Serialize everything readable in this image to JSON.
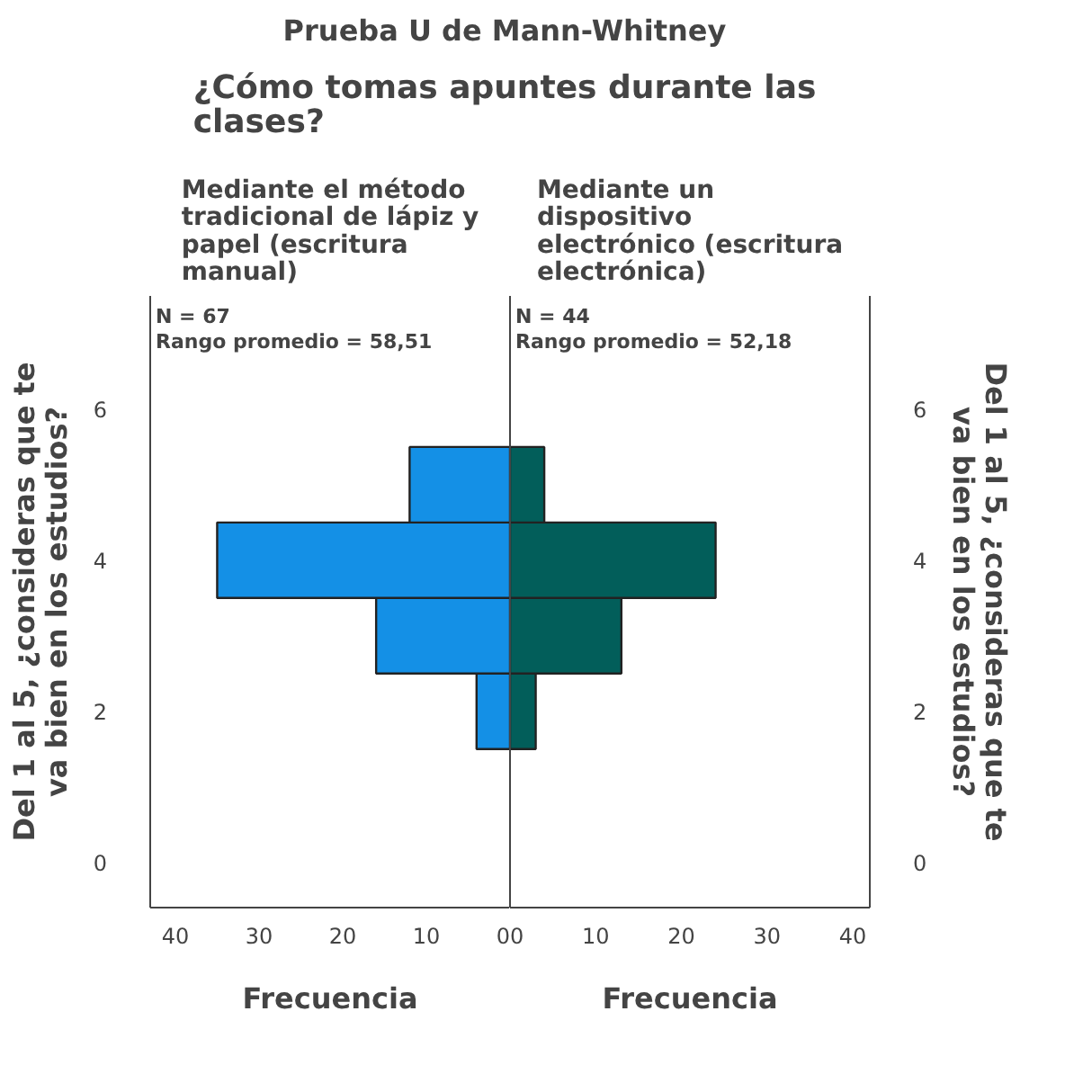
{
  "chart_data": [
    {
      "type": "other",
      "title": "Prueba U de Mann-Whitney",
      "subtitle": "¿Cómo tomas apuntes durante las clases?"
    },
    {
      "type": "histogram",
      "orientation": "horizontal",
      "title": "Mediante el método tradicional de lápiz y papel (escritura manual)",
      "xlabel": "Frecuencia",
      "ylabel": "Del 1 al 5, ¿consideras que te va bien en los estudios?",
      "bins": [
        1.5,
        2.5,
        3.5,
        4.5,
        5.5
      ],
      "values": [
        4,
        16,
        35,
        12
      ],
      "color": "#1490e6",
      "xlim": [
        43,
        0
      ],
      "xticks": [
        40,
        30,
        20,
        10,
        0
      ],
      "ylim": [
        -0.6,
        7.5
      ],
      "yticks": [
        0,
        2,
        4,
        6
      ],
      "annotations": [
        "N = 67",
        "Rango promedio = 58,51"
      ]
    },
    {
      "type": "histogram",
      "orientation": "horizontal",
      "title": "Mediante un dispositivo electrónico (escritura electrónica)",
      "xlabel": "Frecuencia",
      "ylabel": "Del 1 al 5, ¿consideras que te va bien en los estudios?",
      "bins": [
        1.5,
        2.5,
        3.5,
        4.5,
        5.5
      ],
      "values": [
        3,
        13,
        24,
        4
      ],
      "color": "#025e5a",
      "xlim": [
        0,
        42
      ],
      "xticks": [
        0,
        10,
        20,
        30,
        40
      ],
      "ylim": [
        -0.6,
        7.5
      ],
      "yticks": [
        0,
        2,
        4,
        6
      ],
      "annotations": [
        "N = 44",
        "Rango promedio = 52,18"
      ]
    }
  ]
}
